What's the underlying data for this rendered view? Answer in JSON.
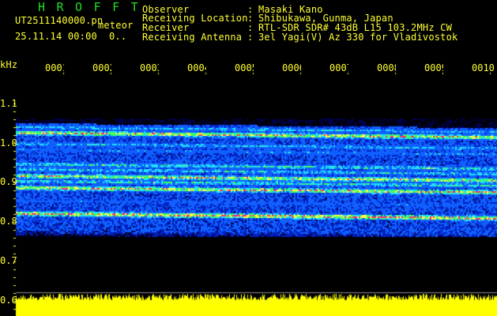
{
  "header": {
    "title": "HROFFT",
    "filename": "UT2511140000.pn",
    "mode": "meteor",
    "datetime": "25.11.14 00:00",
    "count": "0..",
    "info": [
      {
        "label": "Observer",
        "sep": ":",
        "value": "Masaki Kano"
      },
      {
        "label": "Receiving Location",
        "sep": ":",
        "value": "Shibukawa, Gunma, Japan"
      },
      {
        "label": "Receiver",
        "sep": ":",
        "value": "RTL-SDR SDR# 43dB L15 103.2MHz CW"
      },
      {
        "label": "Receiving Antenna",
        "sep": ":",
        "value": "3el Yagi(V) Az 330 for Vladivostok"
      }
    ]
  },
  "axis": {
    "unit": "kHz",
    "freq_labels": [
      "1.1",
      "1.0",
      "0.9",
      "0.8",
      "0.7",
      "0.6"
    ],
    "time_labels": [
      "0001",
      "0002",
      "0003",
      "0004",
      "0005",
      "0006",
      "0007",
      "0008",
      "0009",
      "0010"
    ]
  },
  "colors": {
    "text": "#ffff33",
    "title": "#22dd22",
    "noise_bar": "#ffff00",
    "background": "#000000"
  }
}
